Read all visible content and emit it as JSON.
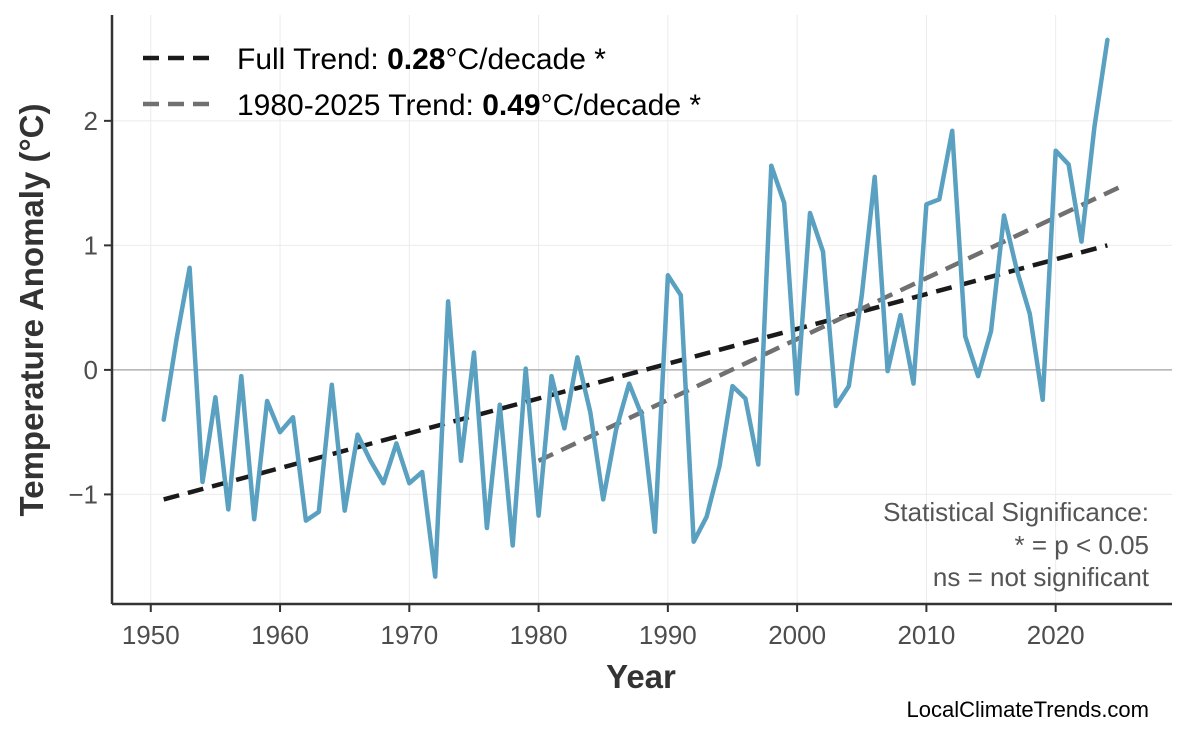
{
  "chart_data": {
    "type": "line",
    "xlabel": "Year",
    "ylabel": "Temperature Anomaly (°C)",
    "xlim": [
      1947,
      2029
    ],
    "ylim": [
      -1.88,
      2.85
    ],
    "xticks": [
      1950,
      1960,
      1970,
      1980,
      1990,
      2000,
      2010,
      2020
    ],
    "yticks": [
      -1,
      0,
      1,
      2
    ],
    "ytick_labels": [
      "−1",
      "0",
      "1",
      "2"
    ],
    "zero_line": true,
    "grid": true,
    "legend_position": "top-left",
    "series": [
      {
        "color": "#5aa0c0",
        "x": [
          1951,
          1952,
          1953,
          1954,
          1955,
          1956,
          1957,
          1958,
          1959,
          1960,
          1961,
          1962,
          1963,
          1964,
          1965,
          1966,
          1967,
          1968,
          1969,
          1970,
          1971,
          1972,
          1973,
          1974,
          1975,
          1976,
          1977,
          1978,
          1979,
          1980,
          1981,
          1982,
          1983,
          1984,
          1985,
          1986,
          1987,
          1988,
          1989,
          1990,
          1991,
          1992,
          1993,
          1994,
          1995,
          1996,
          1997,
          1998,
          1999,
          2000,
          2001,
          2002,
          2003,
          2004,
          2005,
          2006,
          2007,
          2008,
          2009,
          2010,
          2011,
          2012,
          2013,
          2014,
          2015,
          2016,
          2017,
          2018,
          2019,
          2020,
          2021,
          2022,
          2023,
          2024
        ],
        "y": [
          -0.4,
          0.25,
          0.82,
          -0.9,
          -0.22,
          -1.12,
          -0.05,
          -1.2,
          -0.25,
          -0.5,
          -0.38,
          -1.21,
          -1.14,
          -0.12,
          -1.13,
          -0.52,
          -0.73,
          -0.91,
          -0.59,
          -0.91,
          -0.82,
          -1.66,
          0.55,
          -0.73,
          0.14,
          -1.27,
          -0.28,
          -1.41,
          0.01,
          -1.17,
          -0.05,
          -0.47,
          0.1,
          -0.34,
          -1.04,
          -0.48,
          -0.11,
          -0.37,
          -1.3,
          0.76,
          0.6,
          -1.38,
          -1.18,
          -0.77,
          -0.13,
          -0.23,
          -0.76,
          1.64,
          1.34,
          -0.19,
          1.26,
          0.95,
          -0.29,
          -0.13,
          0.6,
          1.55,
          -0.01,
          0.44,
          -0.11,
          1.33,
          1.37,
          1.92,
          0.27,
          -0.05,
          0.31,
          1.24,
          0.8,
          0.45,
          -0.24,
          1.76,
          1.65,
          1.03,
          1.95,
          2.65
        ]
      }
    ],
    "trend_lines": [
      {
        "label": "Full Trend: ",
        "rate": "0.28",
        "unit": "°C/decade *",
        "color": "#1a1a1a",
        "x": [
          1951,
          2024
        ],
        "y": [
          -1.04,
          1.0
        ]
      },
      {
        "label": "1980-2025 Trend: ",
        "rate": "0.49",
        "unit": "°C/decade *",
        "color": "#707070",
        "x": [
          1980,
          2025
        ],
        "y": [
          -0.73,
          1.47
        ]
      }
    ],
    "annotation": [
      "Statistical Significance:",
      "* = p < 0.05",
      "ns = not significant"
    ],
    "credit": "LocalClimateTrends.com"
  }
}
